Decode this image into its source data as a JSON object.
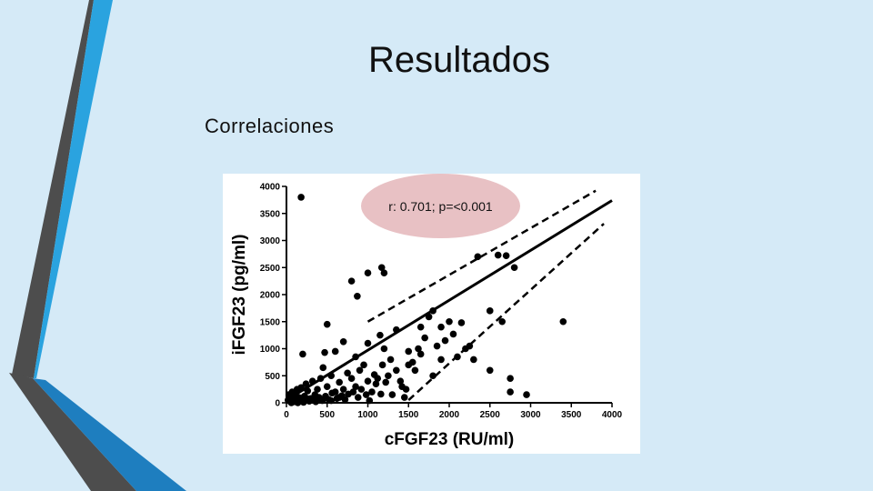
{
  "slide": {
    "title": "Resultados",
    "subtitle": "Correlaciones"
  },
  "colors": {
    "background": "#d5eaf7",
    "accent_blue": "#2aa3df",
    "accent_dark": "#4d4d4d",
    "annotation_fill": "#e8c1c4"
  },
  "chart_data": {
    "type": "scatter",
    "xlabel": "cFGF23 (RU/ml)",
    "ylabel": "iFGF23 (pg/ml)",
    "xlim": [
      0,
      4000
    ],
    "ylim": [
      0,
      4000
    ],
    "xticks": [
      "0",
      "500",
      "1000",
      "1500",
      "2000",
      "2500",
      "3000",
      "3500",
      "4000"
    ],
    "yticks": [
      "0",
      "500",
      "1000",
      "1500",
      "2000",
      "2500",
      "3000",
      "3500",
      "4000"
    ],
    "annotation": "r: 0.701; p=<0.001",
    "regression": {
      "fit": [
        [
          0,
          50
        ],
        [
          4000,
          3740
        ]
      ],
      "ci_upper": [
        [
          1000,
          1500
        ],
        [
          3800,
          3920
        ]
      ],
      "ci_lower": [
        [
          1500,
          50
        ],
        [
          3900,
          3310
        ]
      ]
    },
    "points": [
      [
        180,
        3800
      ],
      [
        800,
        2250
      ],
      [
        870,
        1970
      ],
      [
        1000,
        2400
      ],
      [
        1170,
        2500
      ],
      [
        1200,
        2400
      ],
      [
        500,
        1450
      ],
      [
        700,
        1130
      ],
      [
        600,
        950
      ],
      [
        470,
        930
      ],
      [
        200,
        900
      ],
      [
        1000,
        1100
      ],
      [
        1150,
        1250
      ],
      [
        1200,
        1000
      ],
      [
        1350,
        1350
      ],
      [
        1500,
        950
      ],
      [
        1650,
        1400
      ],
      [
        1750,
        1590
      ],
      [
        1800,
        1700
      ],
      [
        1900,
        1400
      ],
      [
        2000,
        1500
      ],
      [
        2050,
        1270
      ],
      [
        2150,
        1480
      ],
      [
        2200,
        1000
      ],
      [
        2350,
        2700
      ],
      [
        2600,
        2730
      ],
      [
        2700,
        2720
      ],
      [
        2800,
        2500
      ],
      [
        2500,
        1700
      ],
      [
        2650,
        1500
      ],
      [
        3400,
        1500
      ],
      [
        2750,
        450
      ],
      [
        2750,
        200
      ],
      [
        2950,
        150
      ],
      [
        2500,
        600
      ],
      [
        2300,
        800
      ],
      [
        2100,
        850
      ],
      [
        1900,
        800
      ],
      [
        1800,
        500
      ],
      [
        1500,
        700
      ],
      [
        1350,
        600
      ],
      [
        1250,
        500
      ],
      [
        1100,
        350
      ],
      [
        1000,
        400
      ],
      [
        950,
        700
      ],
      [
        900,
        600
      ],
      [
        850,
        300
      ],
      [
        800,
        450
      ],
      [
        750,
        550
      ],
      [
        700,
        250
      ],
      [
        650,
        380
      ],
      [
        600,
        200
      ],
      [
        550,
        500
      ],
      [
        500,
        300
      ],
      [
        450,
        650
      ],
      [
        420,
        450
      ],
      [
        380,
        250
      ],
      [
        350,
        150
      ],
      [
        320,
        400
      ],
      [
        300,
        80
      ],
      [
        260,
        220
      ],
      [
        240,
        350
      ],
      [
        220,
        120
      ],
      [
        200,
        60
      ],
      [
        180,
        280
      ],
      [
        150,
        100
      ],
      [
        130,
        250
      ],
      [
        110,
        150
      ],
      [
        90,
        60
      ],
      [
        70,
        200
      ],
      [
        50,
        100
      ],
      [
        40,
        30
      ],
      [
        30,
        150
      ],
      [
        20,
        50
      ],
      [
        60,
        0
      ],
      [
        100,
        20
      ],
      [
        140,
        0
      ],
      [
        170,
        40
      ],
      [
        210,
        10
      ],
      [
        250,
        80
      ],
      [
        280,
        30
      ],
      [
        330,
        60
      ],
      [
        360,
        20
      ],
      [
        400,
        100
      ],
      [
        440,
        40
      ],
      [
        480,
        120
      ],
      [
        520,
        60
      ],
      [
        560,
        180
      ],
      [
        620,
        80
      ],
      [
        680,
        130
      ],
      [
        720,
        60
      ],
      [
        760,
        160
      ],
      [
        820,
        200
      ],
      [
        880,
        100
      ],
      [
        920,
        250
      ],
      [
        980,
        150
      ],
      [
        1050,
        200
      ],
      [
        1080,
        520
      ],
      [
        1120,
        450
      ],
      [
        1180,
        700
      ],
      [
        1220,
        380
      ],
      [
        1280,
        800
      ],
      [
        1420,
        300
      ],
      [
        1450,
        100
      ],
      [
        1470,
        250
      ],
      [
        1550,
        750
      ],
      [
        1580,
        600
      ],
      [
        1620,
        1000
      ],
      [
        1700,
        1200
      ],
      [
        1850,
        1050
      ],
      [
        1950,
        1150
      ],
      [
        2250,
        1050
      ],
      [
        1650,
        900
      ],
      [
        1400,
        400
      ],
      [
        1300,
        150
      ],
      [
        850,
        850
      ],
      [
        650,
        100
      ],
      [
        550,
        40
      ],
      [
        1020,
        40
      ],
      [
        1160,
        160
      ]
    ]
  }
}
